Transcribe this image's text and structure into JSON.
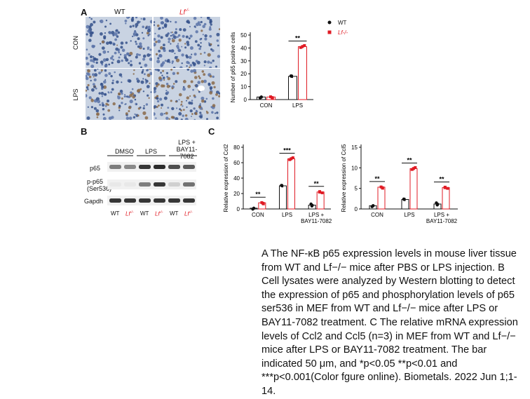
{
  "panel_a": {
    "letter": "A",
    "col_wt": "WT",
    "col_lf": "Lf",
    "col_lf_sup": "-/-",
    "row_con": "CON",
    "row_lps": "LPS"
  },
  "panel_b": {
    "letter": "B",
    "groups": [
      "DMSO",
      "LPS",
      "LPS +",
      "BAY11-7082"
    ],
    "rows": [
      "p65",
      "p-p65",
      "(Ser536)",
      "Gapdh"
    ],
    "lanes": [
      "WT",
      "Lf",
      "WT",
      "Lf",
      "WT",
      "Lf"
    ],
    "lf_sup": "-/-"
  },
  "panel_c": {
    "letter": "C"
  },
  "chart_data": [
    {
      "type": "bar",
      "id": "p65-positive-cells",
      "categories": [
        "CON",
        "LPS"
      ],
      "series": [
        {
          "name": "WT",
          "values": [
            2,
            18
          ],
          "color": "#111111"
        },
        {
          "name": "Lf-/-",
          "values": [
            2,
            41
          ],
          "color": "#e01b24"
        }
      ],
      "ylabel": "Number of p65 positive cells",
      "ylim": [
        0,
        50
      ],
      "yticks": [
        0,
        10,
        20,
        30,
        40,
        50
      ],
      "significance": [
        {
          "category": "LPS",
          "label": "**"
        }
      ],
      "legend": "top-right"
    },
    {
      "type": "bar",
      "id": "ccl2",
      "categories": [
        "CON",
        "LPS",
        "LPS +|BAY11-7082"
      ],
      "series": [
        {
          "name": "WT",
          "values": [
            1,
            30,
            5
          ],
          "color": "#111111"
        },
        {
          "name": "Lf-/-",
          "values": [
            8,
            65,
            22
          ],
          "color": "#e01b24"
        }
      ],
      "ylabel": "Relative expression of Ccl2",
      "ylim": [
        0,
        80
      ],
      "yticks": [
        0,
        20,
        40,
        60,
        80
      ],
      "significance": [
        {
          "category": "CON",
          "label": "**"
        },
        {
          "category": "LPS",
          "label": "***"
        },
        {
          "category": "LPS +|BAY11-7082",
          "label": "**"
        }
      ]
    },
    {
      "type": "bar",
      "id": "ccl5",
      "categories": [
        "CON",
        "LPS",
        "LPS +|BAY11-7082"
      ],
      "series": [
        {
          "name": "WT",
          "values": [
            0.8,
            2.3,
            1.2
          ],
          "color": "#111111"
        },
        {
          "name": "Lf-/-",
          "values": [
            5.3,
            9.8,
            5.2
          ],
          "color": "#e01b24"
        }
      ],
      "ylabel": "Relative expression of Ccl5",
      "ylim": [
        0,
        15
      ],
      "yticks": [
        0,
        5,
        10,
        15
      ],
      "significance": [
        {
          "category": "CON",
          "label": "**"
        },
        {
          "category": "LPS",
          "label": "**"
        },
        {
          "category": "LPS +|BAY11-7082",
          "label": "**"
        }
      ]
    }
  ],
  "caption": "A The NF-κB p65 expression levels in mouse liver tissue from WT and Lf−/− mice after PBS or LPS injection. B Cell lysates were analyzed by Western blotting to detect the expression of p65 and phosphorylation levels of p65 ser536 in MEF from WT and Lf−/− mice after LPS or BAY11-7082 treatment. C The relative mRNA expression levels of Ccl2 and Ccl5 (n=3) in MEF from WT and Lf−/− mice after LPS or BAY11-7082 treatment. The bar indicated 50 μm, and *p<0.05 **p<0.01 and ***p<0.001(Color fgure online). Biometals. 2022 Jun 1;1-14."
}
